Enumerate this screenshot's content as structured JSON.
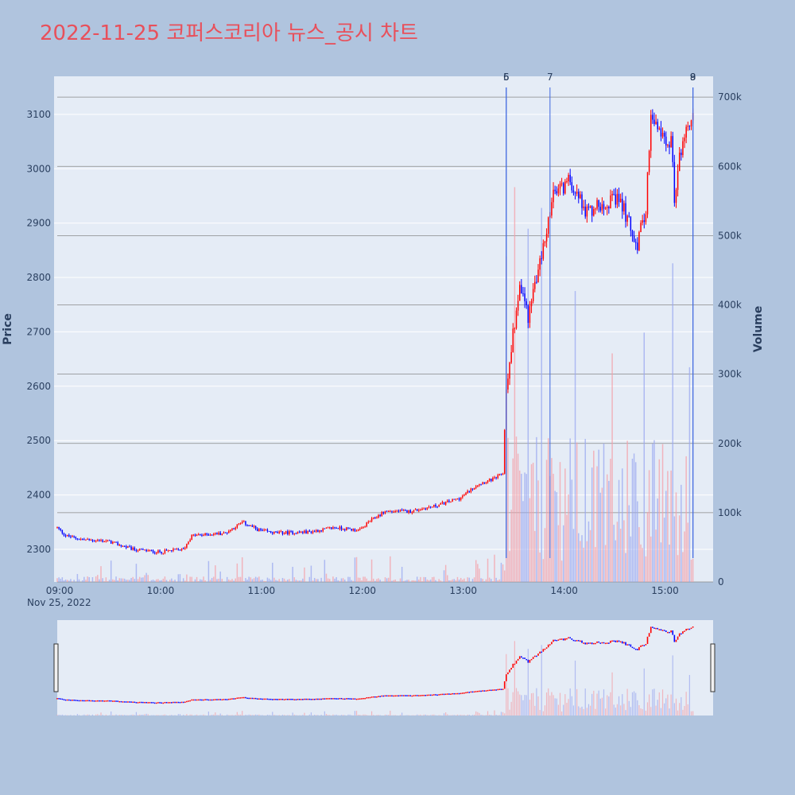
{
  "title": "2022-11-25 코퍼스코리아 뉴스_공시 차트",
  "colors": {
    "up": "#ff0000",
    "down": "#0000ff",
    "up_vol": "#f4a0a8",
    "down_vol": "#9aa8f0",
    "plot_bg": "#e5ecf6",
    "page_bg": "#b0c4de",
    "title": "#e8505b",
    "annotation_line": "#4169e1"
  },
  "chart_data": {
    "type": "candlestick",
    "title": "2022-11-25 코퍼스코리아 뉴스_공시 차트",
    "ylabel": "Price",
    "y2label": "Volume",
    "ylim": [
      2240,
      3170
    ],
    "y2lim": [
      0,
      730000
    ],
    "x_range": [
      "09:00",
      "15:30"
    ],
    "x_ticks": [
      "09:00",
      "10:00",
      "11:00",
      "12:00",
      "13:00",
      "14:00",
      "15:00"
    ],
    "x_date_label": "Nov 25, 2022",
    "y_ticks": [
      2300,
      2400,
      2500,
      2600,
      2700,
      2800,
      2900,
      3000,
      3100
    ],
    "y2_ticks": [
      "0",
      "100k",
      "200k",
      "300k",
      "400k",
      "500k",
      "600k",
      "700k"
    ],
    "y2_tick_values": [
      0,
      100000,
      200000,
      300000,
      400000,
      500000,
      600000,
      700000
    ],
    "price_path": [
      [
        "09:00",
        2340
      ],
      [
        "09:05",
        2325
      ],
      [
        "09:15",
        2318
      ],
      [
        "09:30",
        2315
      ],
      [
        "09:45",
        2300
      ],
      [
        "10:00",
        2295
      ],
      [
        "10:15",
        2300
      ],
      [
        "10:20",
        2325
      ],
      [
        "10:40",
        2330
      ],
      [
        "10:50",
        2350
      ],
      [
        "11:00",
        2335
      ],
      [
        "11:10",
        2330
      ],
      [
        "11:30",
        2332
      ],
      [
        "11:45",
        2340
      ],
      [
        "12:00",
        2335
      ],
      [
        "12:05",
        2350
      ],
      [
        "12:15",
        2370
      ],
      [
        "12:30",
        2370
      ],
      [
        "12:45",
        2380
      ],
      [
        "13:00",
        2395
      ],
      [
        "13:10",
        2420
      ],
      [
        "13:20",
        2430
      ],
      [
        "13:25",
        2440
      ],
      [
        "13:27",
        2600
      ],
      [
        "13:35",
        2790
      ],
      [
        "13:40",
        2730
      ],
      [
        "13:48",
        2840
      ],
      [
        "13:55",
        2950
      ],
      [
        "14:05",
        2980
      ],
      [
        "14:15",
        2920
      ],
      [
        "14:25",
        2940
      ],
      [
        "14:35",
        2940
      ],
      [
        "14:45",
        2860
      ],
      [
        "14:50",
        2930
      ],
      [
        "14:53",
        3090
      ],
      [
        "15:00",
        3060
      ],
      [
        "15:05",
        3050
      ],
      [
        "15:07",
        2950
      ],
      [
        "15:12",
        3060
      ],
      [
        "15:18",
        3100
      ]
    ],
    "volume_spikes": [
      [
        "13:27",
        470000
      ],
      [
        "13:32",
        570000
      ],
      [
        "13:40",
        510000
      ],
      [
        "13:48",
        540000
      ],
      [
        "14:08",
        420000
      ],
      [
        "14:30",
        330000
      ],
      [
        "14:49",
        360000
      ],
      [
        "15:06",
        460000
      ],
      [
        "15:16",
        310000
      ],
      [
        "15:30",
        380000
      ]
    ],
    "annotations": [
      {
        "label": "5",
        "time": "13:27"
      },
      {
        "label": "6",
        "time": "13:27"
      },
      {
        "label": "7",
        "time": "13:53"
      },
      {
        "label": "8",
        "time": "15:18"
      },
      {
        "label": "9",
        "time": "15:18"
      }
    ],
    "range_slider": true
  }
}
